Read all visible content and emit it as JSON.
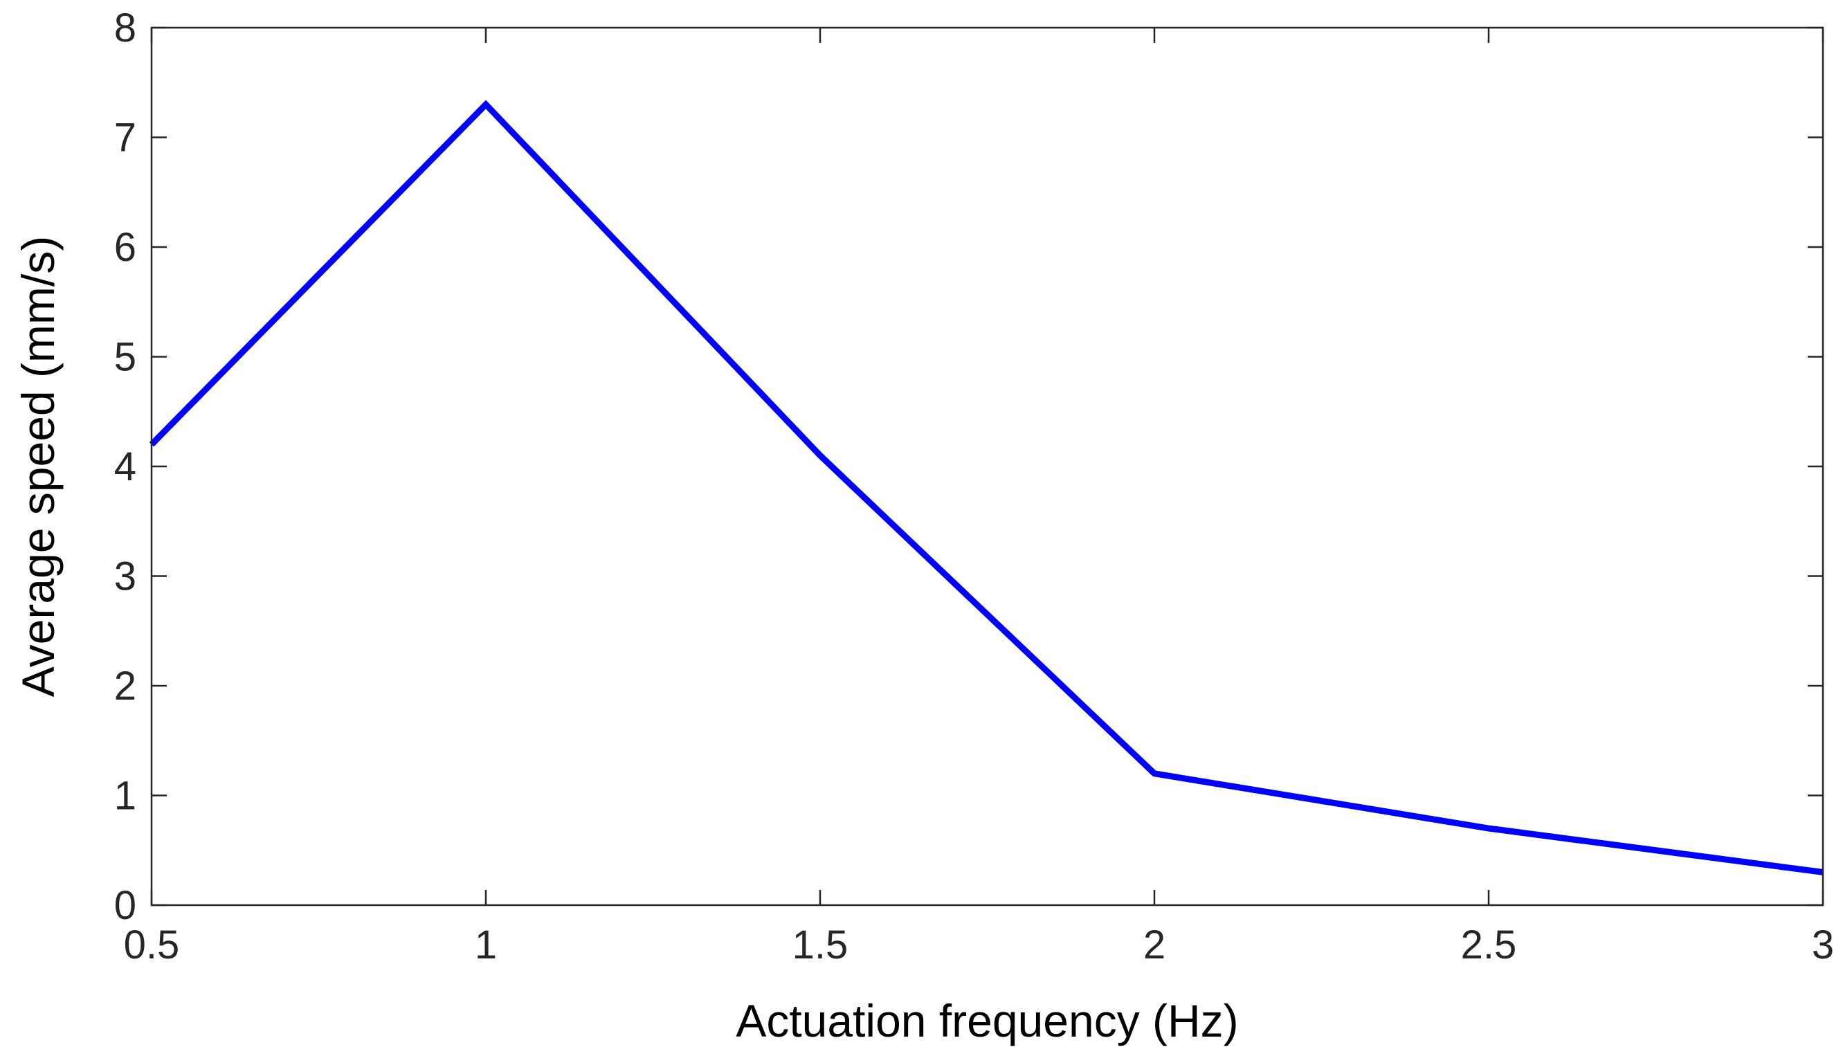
{
  "chart_data": {
    "type": "line",
    "title": "",
    "xlabel": "Actuation frequency (Hz)",
    "ylabel": "Average speed (mm/s)",
    "xlim": [
      0.5,
      3
    ],
    "ylim": [
      0,
      8
    ],
    "xticks": [
      0.5,
      1,
      1.5,
      2,
      2.5,
      3
    ],
    "xtick_labels": [
      "0.5",
      "1",
      "1.5",
      "2",
      "2.5",
      "3"
    ],
    "yticks": [
      0,
      1,
      2,
      3,
      4,
      5,
      6,
      7,
      8
    ],
    "ytick_labels": [
      "0",
      "1",
      "2",
      "3",
      "4",
      "5",
      "6",
      "7",
      "8"
    ],
    "grid": false,
    "legend": "none",
    "box": true,
    "series": [
      {
        "color": "#0000ff",
        "x": [
          0.5,
          1,
          1.5,
          2,
          2.5,
          3
        ],
        "y": [
          4.2,
          7.3,
          4.1,
          1.2,
          0.7,
          0.3
        ]
      }
    ]
  }
}
